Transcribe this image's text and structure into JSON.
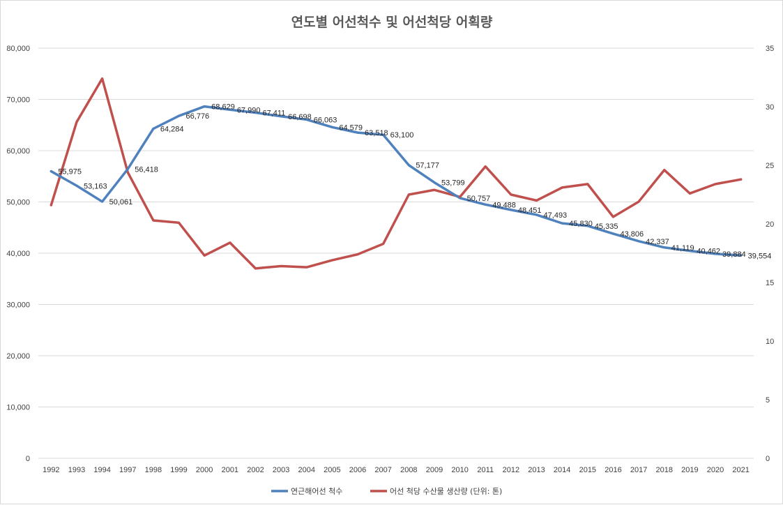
{
  "chart_data": {
    "type": "line",
    "title": "연도별 어선척수 및 어선척당 어획량",
    "categories": [
      "1992",
      "1993",
      "1994",
      "1997",
      "1998",
      "1999",
      "2000",
      "2001",
      "2002",
      "2003",
      "2004",
      "2005",
      "2006",
      "2007",
      "2008",
      "2009",
      "2010",
      "2011",
      "2012",
      "2013",
      "2014",
      "2015",
      "2016",
      "2017",
      "2018",
      "2019",
      "2020",
      "2021"
    ],
    "y_left": {
      "min": 0,
      "max": 80000,
      "ticks": [
        "0",
        "10,000",
        "20,000",
        "30,000",
        "40,000",
        "50,000",
        "60,000",
        "70,000",
        "80,000"
      ]
    },
    "y_right": {
      "min": 0,
      "max": 35,
      "ticks": [
        "0",
        "5",
        "10",
        "15",
        "20",
        "25",
        "30",
        "35"
      ]
    },
    "grid": true,
    "legend_position": "bottom",
    "series": [
      {
        "name": "연근해어선 척수",
        "axis": "left",
        "color": "#4f81bd",
        "values": [
          55975,
          53163,
          50061,
          56418,
          64284,
          66776,
          68629,
          67990,
          67411,
          66698,
          66063,
          64579,
          63518,
          63100,
          57177,
          53799,
          50757,
          49488,
          48451,
          47493,
          45830,
          45335,
          43806,
          42337,
          41119,
          40462,
          39884,
          39554
        ],
        "labels": [
          "55,975",
          "53,163",
          "50,061",
          "56,418",
          "64,284",
          "66,776",
          "68,629",
          "67,990",
          "67,411",
          "66,698",
          "66,063",
          "64,579",
          "63,518",
          "63,100",
          "57,177",
          "53,799",
          "50,757",
          "49,488",
          "48,451",
          "47,493",
          "45,830",
          "45,335",
          "43,806",
          "42,337",
          "41,119",
          "40,462",
          "39,884",
          "39,554"
        ]
      },
      {
        "name": "어선 척당 수산물 생산량 (단위: 톤)",
        "axis": "right",
        "color": "#c0504d",
        "values": [
          21.6,
          28.7,
          32.4,
          24.4,
          20.3,
          20.1,
          17.3,
          18.4,
          16.2,
          16.4,
          16.3,
          16.9,
          17.4,
          18.3,
          22.5,
          22.9,
          22.3,
          24.9,
          22.5,
          22.0,
          23.1,
          23.4,
          20.6,
          21.9,
          24.6,
          22.6,
          23.4,
          23.8
        ]
      }
    ]
  }
}
